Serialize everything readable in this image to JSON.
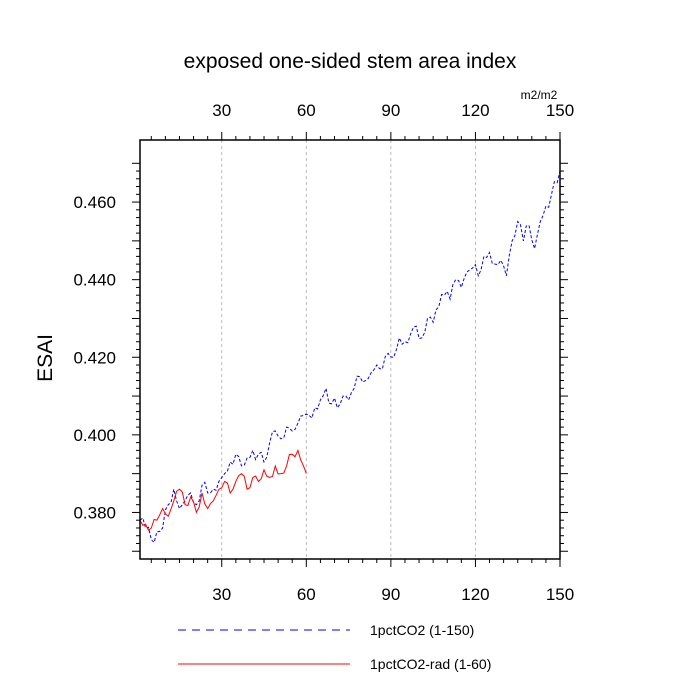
{
  "chart_data": {
    "type": "line",
    "title": "exposed one-sided stem area index",
    "ylabel": "ESAI",
    "units": "m2/m2",
    "xlim": [
      1,
      150
    ],
    "ylim": [
      0.368,
      0.476
    ],
    "x_ticks": [
      30,
      60,
      90,
      120,
      150
    ],
    "y_ticks": [
      0.38,
      0.4,
      0.42,
      0.44,
      0.46
    ],
    "y_tick_labels": [
      "0.380",
      "0.400",
      "0.420",
      "0.440",
      "0.460"
    ],
    "grid": "vertical-dashed",
    "legend_position": "bottom",
    "colors": {
      "top_axis_labels": "#0000ff",
      "bottom_axis_labels": "#ff0000"
    },
    "series": [
      {
        "name": "1pctCO2 (1-150)",
        "color": "#0000ff",
        "dash": "dashed",
        "anchors": [
          [
            1,
            0.378
          ],
          [
            3,
            0.376
          ],
          [
            5,
            0.373
          ],
          [
            7,
            0.375
          ],
          [
            9,
            0.376
          ],
          [
            11,
            0.382
          ],
          [
            13,
            0.386
          ],
          [
            15,
            0.381
          ],
          [
            17,
            0.383
          ],
          [
            19,
            0.385
          ],
          [
            21,
            0.382
          ],
          [
            23,
            0.387
          ],
          [
            25,
            0.385
          ],
          [
            27,
            0.386
          ],
          [
            29,
            0.388
          ],
          [
            31,
            0.39
          ],
          [
            33,
            0.393
          ],
          [
            35,
            0.395
          ],
          [
            37,
            0.392
          ],
          [
            39,
            0.394
          ],
          [
            41,
            0.396
          ],
          [
            43,
            0.395
          ],
          [
            45,
            0.393
          ],
          [
            47,
            0.398
          ],
          [
            49,
            0.401
          ],
          [
            51,
            0.399
          ],
          [
            53,
            0.402
          ],
          [
            55,
            0.401
          ],
          [
            57,
            0.403
          ],
          [
            59,
            0.405
          ],
          [
            61,
            0.405
          ],
          [
            63,
            0.407
          ],
          [
            65,
            0.409
          ],
          [
            67,
            0.412
          ],
          [
            69,
            0.408
          ],
          [
            71,
            0.407
          ],
          [
            73,
            0.41
          ],
          [
            75,
            0.409
          ],
          [
            77,
            0.412
          ],
          [
            79,
            0.415
          ],
          [
            81,
            0.414
          ],
          [
            83,
            0.416
          ],
          [
            85,
            0.418
          ],
          [
            87,
            0.417
          ],
          [
            89,
            0.421
          ],
          [
            91,
            0.42
          ],
          [
            93,
            0.425
          ],
          [
            95,
            0.424
          ],
          [
            97,
            0.426
          ],
          [
            99,
            0.428
          ],
          [
            101,
            0.425
          ],
          [
            103,
            0.43
          ],
          [
            105,
            0.429
          ],
          [
            107,
            0.433
          ],
          [
            109,
            0.436
          ],
          [
            111,
            0.435
          ],
          [
            113,
            0.44
          ],
          [
            115,
            0.438
          ],
          [
            117,
            0.442
          ],
          [
            119,
            0.443
          ],
          [
            121,
            0.441
          ],
          [
            123,
            0.446
          ],
          [
            125,
            0.447
          ],
          [
            127,
            0.444
          ],
          [
            129,
            0.445
          ],
          [
            131,
            0.441
          ],
          [
            133,
            0.45
          ],
          [
            135,
            0.455
          ],
          [
            137,
            0.45
          ],
          [
            139,
            0.454
          ],
          [
            141,
            0.448
          ],
          [
            143,
            0.455
          ],
          [
            145,
            0.459
          ],
          [
            147,
            0.462
          ],
          [
            149,
            0.465
          ],
          [
            150,
            0.468
          ]
        ]
      },
      {
        "name": "1pctCO2-rad (1-60)",
        "color": "#ff0000",
        "dash": "solid",
        "anchors": [
          [
            1,
            0.378
          ],
          [
            3,
            0.377
          ],
          [
            5,
            0.376
          ],
          [
            7,
            0.378
          ],
          [
            9,
            0.381
          ],
          [
            11,
            0.379
          ],
          [
            13,
            0.383
          ],
          [
            15,
            0.386
          ],
          [
            17,
            0.382
          ],
          [
            19,
            0.384
          ],
          [
            21,
            0.38
          ],
          [
            23,
            0.385
          ],
          [
            25,
            0.381
          ],
          [
            27,
            0.383
          ],
          [
            29,
            0.386
          ],
          [
            31,
            0.388
          ],
          [
            33,
            0.385
          ],
          [
            35,
            0.388
          ],
          [
            37,
            0.39
          ],
          [
            39,
            0.386
          ],
          [
            41,
            0.389
          ],
          [
            43,
            0.388
          ],
          [
            45,
            0.391
          ],
          [
            47,
            0.389
          ],
          [
            49,
            0.392
          ],
          [
            51,
            0.39
          ],
          [
            53,
            0.392
          ],
          [
            55,
            0.395
          ],
          [
            57,
            0.396
          ],
          [
            59,
            0.392
          ],
          [
            60,
            0.39
          ]
        ]
      }
    ]
  }
}
